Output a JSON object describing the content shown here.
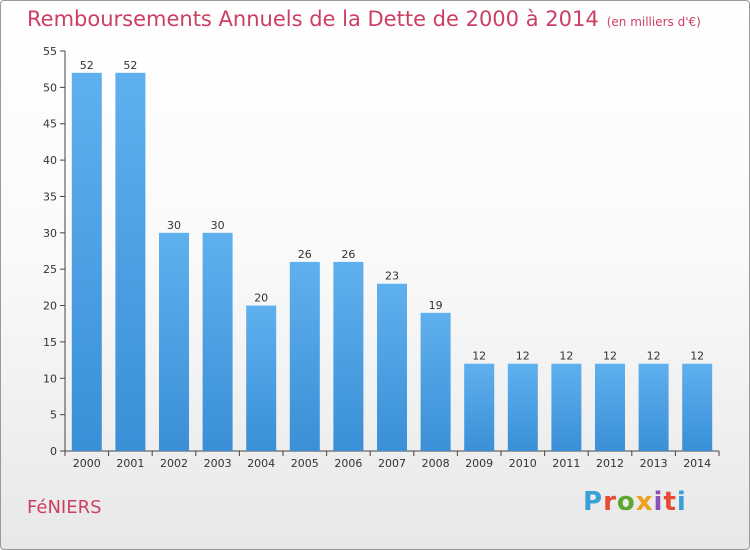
{
  "title": "Remboursements Annuels de la Dette de 2000 à 2014",
  "subtitle": "(en milliers d'€)",
  "city": "FéNIERS",
  "logo": {
    "letters": [
      "P",
      "r",
      "o",
      "x",
      "i",
      "t",
      "i"
    ],
    "colors": [
      "#3aa0d8",
      "#e84b34",
      "#5aa830",
      "#f0a020",
      "#8b52b5",
      "#e84b34",
      "#3aa0d8"
    ]
  },
  "colors": {
    "bar": "#3a8fd6",
    "bar_light": "#5fb0ee",
    "accent": "#cc3f63"
  },
  "chart_data": {
    "type": "bar",
    "categories": [
      "2000",
      "2001",
      "2002",
      "2003",
      "2004",
      "2005",
      "2006",
      "2007",
      "2008",
      "2009",
      "2010",
      "2011",
      "2012",
      "2013",
      "2014"
    ],
    "values": [
      52,
      52,
      30,
      30,
      20,
      26,
      26,
      23,
      19,
      12,
      12,
      12,
      12,
      12,
      12
    ],
    "ylim": [
      0,
      55
    ],
    "yticks": [
      0,
      5,
      10,
      15,
      20,
      25,
      30,
      35,
      40,
      45,
      50,
      55
    ],
    "grid": false
  }
}
